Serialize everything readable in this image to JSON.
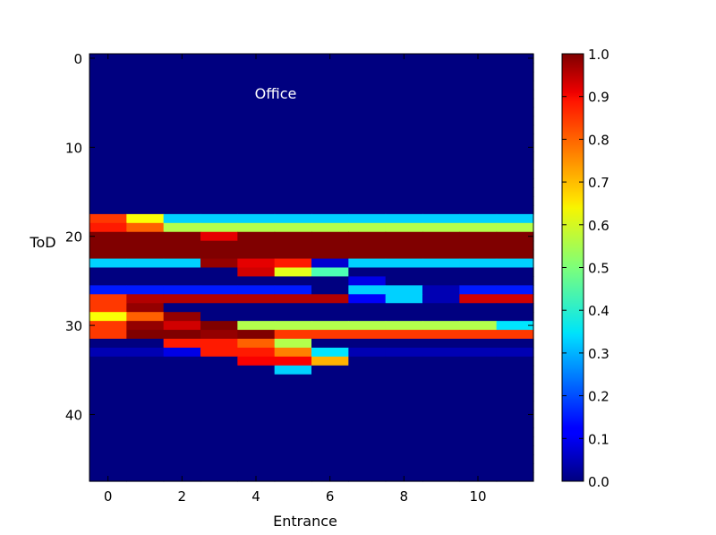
{
  "chart_data": {
    "type": "heatmap",
    "title": "",
    "annotation": "Office",
    "xlabel": "Entrance",
    "ylabel": "ToD",
    "x_ticks": [
      "0",
      "2",
      "4",
      "6",
      "8",
      "10"
    ],
    "y_ticks": [
      "0",
      "10",
      "20",
      "30",
      "40"
    ],
    "colorbar_ticks": [
      "0.0",
      "0.1",
      "0.2",
      "0.3",
      "0.4",
      "0.5",
      "0.6",
      "0.7",
      "0.8",
      "0.9",
      "1.0"
    ],
    "colormap": "jet",
    "vmin": 0.0,
    "vmax": 1.0,
    "n_columns": 12,
    "n_rows": 48,
    "grid": false,
    "rows_comment_free": true,
    "rows": {
      "18": [
        0.82,
        0.62,
        0.33,
        0.33,
        0.33,
        0.33,
        0.33,
        0.33,
        0.33,
        0.33,
        0.33,
        0.33
      ],
      "19": [
        0.85,
        0.78,
        0.55,
        0.55,
        0.55,
        0.55,
        0.55,
        0.55,
        0.55,
        0.55,
        0.55,
        0.55
      ],
      "20": [
        1.0,
        1.0,
        1.0,
        0.9,
        1.0,
        1.0,
        1.0,
        1.0,
        1.0,
        1.0,
        1.0,
        1.0
      ],
      "21": [
        1.0,
        1.0,
        1.0,
        1.0,
        1.0,
        1.0,
        1.0,
        1.0,
        1.0,
        1.0,
        1.0,
        1.0
      ],
      "22": [
        1.0,
        1.0,
        1.0,
        1.0,
        1.0,
        1.0,
        1.0,
        1.0,
        1.0,
        1.0,
        1.0,
        1.0
      ],
      "23": [
        0.33,
        0.33,
        0.33,
        0.98,
        0.9,
        0.85,
        0.08,
        0.33,
        0.33,
        0.33,
        0.33,
        0.33
      ],
      "24": [
        0.0,
        0.0,
        0.0,
        0.0,
        0.92,
        0.6,
        0.45,
        0.0,
        0.0,
        0.0,
        0.0,
        0.0
      ],
      "25": [
        0.0,
        0.0,
        0.0,
        0.0,
        0.0,
        0.0,
        0.0,
        0.1,
        0.0,
        0.0,
        0.0,
        0.0
      ],
      "26": [
        0.15,
        0.15,
        0.15,
        0.15,
        0.15,
        0.15,
        0.0,
        0.33,
        0.33,
        0.05,
        0.15,
        0.15
      ],
      "27": [
        0.82,
        0.95,
        0.95,
        0.95,
        0.95,
        0.95,
        0.95,
        0.12,
        0.33,
        0.05,
        0.92,
        0.92
      ],
      "28": [
        0.82,
        0.98,
        0.0,
        0.0,
        0.0,
        0.0,
        0.0,
        0.0,
        0.0,
        0.0,
        0.0,
        0.0
      ],
      "29": [
        0.62,
        0.78,
        0.98,
        0.0,
        0.0,
        0.0,
        0.0,
        0.0,
        0.0,
        0.0,
        0.0,
        0.0
      ],
      "30": [
        0.82,
        0.98,
        0.92,
        1.0,
        0.55,
        0.55,
        0.55,
        0.55,
        0.55,
        0.55,
        0.55,
        0.35
      ],
      "31": [
        0.82,
        1.0,
        1.0,
        0.98,
        1.0,
        0.82,
        0.82,
        0.82,
        0.82,
        0.82,
        0.82,
        0.82
      ],
      "32": [
        0.0,
        0.0,
        0.85,
        0.85,
        0.78,
        0.55,
        0.0,
        0.0,
        0.0,
        0.0,
        0.0,
        0.0
      ],
      "33": [
        0.05,
        0.05,
        0.1,
        0.85,
        0.85,
        0.75,
        0.35,
        0.05,
        0.05,
        0.05,
        0.05,
        0.05
      ],
      "34": [
        0.0,
        0.0,
        0.0,
        0.0,
        0.88,
        0.88,
        0.7,
        0.0,
        0.0,
        0.0,
        0.0,
        0.0
      ],
      "35": [
        0.0,
        0.0,
        0.0,
        0.0,
        0.0,
        0.33,
        0.0,
        0.0,
        0.0,
        0.0,
        0.0,
        0.0
      ]
    }
  }
}
